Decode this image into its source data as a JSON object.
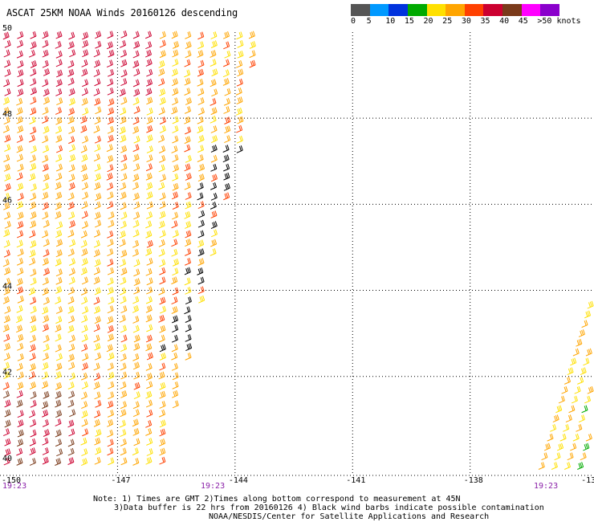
{
  "title": "ASCAT 25KM NOAA Winds 20160126 descending",
  "colorbar": {
    "colors": [
      "#555555",
      "#0099ff",
      "#0033dd",
      "#00aa00",
      "#ffe000",
      "#ffa500",
      "#ff4000",
      "#cc0030",
      "#7a3a1a",
      "#ff00ff",
      "#8a00cc"
    ],
    "labels": [
      "0",
      "5",
      "10",
      "15",
      "20",
      "25",
      "30",
      "35",
      "40",
      "45",
      ">50 knots"
    ]
  },
  "notes": {
    "line1": "Note: 1) Times are GMT 2)Times along bottom correspond to measurement at 45N",
    "line2": "3)Data buffer is 22 hrs from 20160126 4) Black wind barbs indicate possible contamination",
    "line3": "NOAA/NESDIS/Center for Satellite Applications and Research"
  },
  "time_labels": [
    "19:23",
    "19:23",
    "19:23"
  ],
  "chart_data": {
    "type": "scatter",
    "title": "ASCAT 25KM NOAA Winds 20160126 descending",
    "xlabel": "",
    "ylabel": "",
    "x_ticks": [
      "-150",
      "-147",
      "-144",
      "-141",
      "-138",
      "-13"
    ],
    "y_ticks": [
      "40",
      "42",
      "44",
      "46",
      "48",
      "50"
    ],
    "xlim": [
      -150,
      -134.9
    ],
    "ylim": [
      39.7,
      50
    ],
    "grid": true,
    "units": "knots",
    "colors": {
      "black_barbs": "#000000",
      "dotted_grid": "#000000"
    },
    "swaths": [
      {
        "name": "",
        "time": "19:23",
        "outline": [
          [
            -150,
            50
          ],
          [
            -143.5,
            50
          ],
          [
            -144,
            47
          ],
          [
            -145.5,
            41.5
          ],
          [
            -146,
            39.7
          ],
          [
            -150,
            39.7
          ]
        ],
        "speed_pattern": "20-35 knots, 30-40 knots in northwest and southwest corners"
      },
      {
        "name": "",
        "time": "19:23",
        "outline": [
          [
            -134.9,
            39.7
          ],
          [
            -136.3,
            39.7
          ],
          [
            -134.9,
            43.9
          ]
        ],
        "speed_pattern": "20-30 knots"
      }
    ],
    "contamination_zone": {
      "color": "black",
      "lat_range": [
        42.5,
        47.3
      ]
    }
  }
}
